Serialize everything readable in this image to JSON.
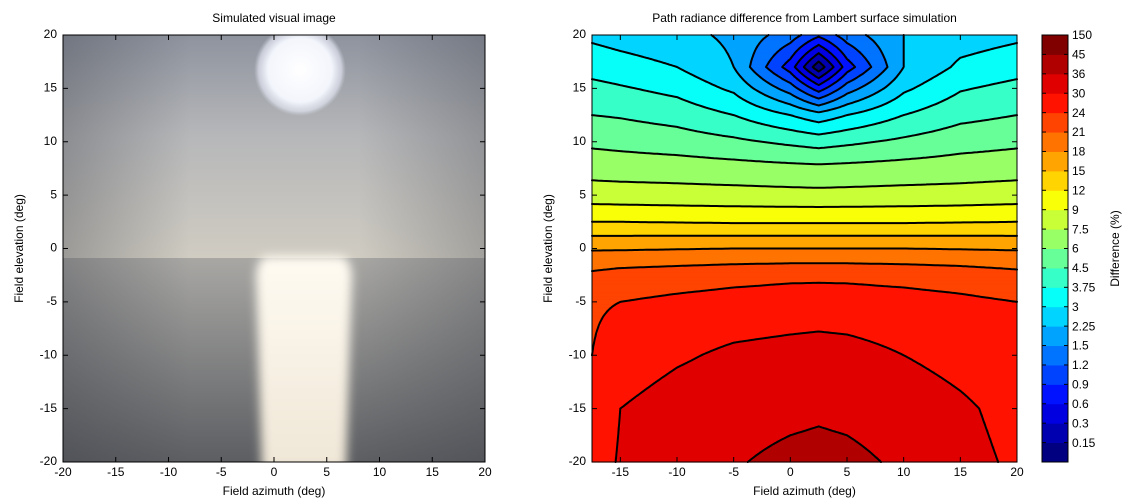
{
  "chart_data": [
    {
      "type": "image",
      "title": "Simulated visual image",
      "x_label": "Field azimuth (deg)",
      "y_label": "Field elevation (deg)",
      "xlim": [
        -20,
        20
      ],
      "ylim": [
        -20,
        20
      ],
      "xticks": [
        -20,
        -15,
        -10,
        -5,
        0,
        5,
        10,
        15,
        20
      ],
      "yticks": [
        -20,
        -15,
        -10,
        -5,
        0,
        5,
        10,
        15,
        20
      ]
    },
    {
      "type": "contour",
      "title": "Path radiance difference from Lambert surface simulation",
      "x_label": "Field azimuth (deg)",
      "y_label": "Field elevation (deg)",
      "xlim": [
        -17.5,
        20
      ],
      "ylim": [
        -20,
        20
      ],
      "xticks": [
        -15,
        -10,
        -5,
        0,
        5,
        10,
        15,
        20
      ],
      "yticks": [
        -20,
        -15,
        -10,
        -5,
        0,
        5,
        10,
        15,
        20
      ],
      "contour_lines": true,
      "line_color": "#000000",
      "x": [
        -17.5,
        -15,
        -10,
        -5,
        0,
        2.5,
        5,
        10,
        15,
        20
      ],
      "y": [
        20,
        17,
        15,
        12.5,
        10,
        7.5,
        5,
        2.5,
        0,
        -2.5,
        -5,
        -10,
        -15,
        -20
      ],
      "z": [
        [
          2.85,
          2.7,
          2.48,
          2.1,
          1.35,
          0.96,
          1.35,
          2.25,
          2.63,
          2.85
        ],
        [
          3.45,
          3.3,
          3.0,
          2.25,
          0.75,
          0.05,
          0.75,
          2.25,
          3.15,
          3.45
        ],
        [
          3.98,
          3.83,
          3.53,
          2.85,
          1.35,
          0.75,
          1.35,
          2.85,
          3.68,
          3.98
        ],
        [
          4.5,
          4.43,
          4.2,
          3.75,
          3.0,
          2.55,
          3.0,
          3.75,
          4.28,
          4.5
        ],
        [
          5.7,
          5.55,
          5.25,
          4.8,
          4.35,
          4.2,
          4.35,
          4.8,
          5.4,
          5.7
        ],
        [
          6.9,
          6.83,
          6.75,
          6.6,
          6.45,
          6.38,
          6.45,
          6.6,
          6.75,
          6.9
        ],
        [
          8.25,
          8.18,
          8.1,
          8.03,
          7.95,
          7.92,
          7.95,
          8.03,
          8.1,
          8.25
        ],
        [
          12,
          12,
          11.85,
          11.7,
          11.7,
          11.7,
          11.7,
          11.7,
          11.85,
          12
        ],
        [
          17.7,
          17.7,
          17.85,
          18,
          18,
          18,
          18,
          18,
          17.85,
          17.7
        ],
        [
          21.6,
          22.2,
          22.65,
          23.1,
          23.4,
          23.4,
          23.4,
          23.1,
          22.65,
          21.9
        ],
        [
          23.7,
          24,
          25.2,
          26.1,
          26.7,
          27,
          26.7,
          26.1,
          25.2,
          24
        ],
        [
          24,
          26.4,
          29.1,
          31.2,
          32.1,
          32.4,
          32.1,
          30,
          27.6,
          25.2
        ],
        [
          25.8,
          30,
          33,
          34.5,
          35.1,
          35.4,
          35.1,
          34.2,
          31.2,
          27.6
        ],
        [
          27,
          30.6,
          33.6,
          35.7,
          37.35,
          37.8,
          37.35,
          35.4,
          32.4,
          28.8
        ]
      ],
      "colorbar": {
        "label": "Difference (%)",
        "levels": [
          0.15,
          0.3,
          0.6,
          0.9,
          1.2,
          1.5,
          2.25,
          3,
          3.75,
          4.5,
          6,
          7.5,
          9,
          12,
          15,
          18,
          21,
          24,
          30,
          36,
          45,
          150
        ],
        "colors": [
          "#000080",
          "#0000b0",
          "#0000e1",
          "#0012ff",
          "#0043ff",
          "#0073ff",
          "#00a4ff",
          "#00d4ff",
          "#06fff9",
          "#37ffc8",
          "#67ff98",
          "#98ff67",
          "#c8ff37",
          "#f9ff06",
          "#ffd400",
          "#ffa400",
          "#ff7300",
          "#ff4300",
          "#ff1200",
          "#e10000",
          "#b00000",
          "#800000"
        ]
      }
    }
  ]
}
